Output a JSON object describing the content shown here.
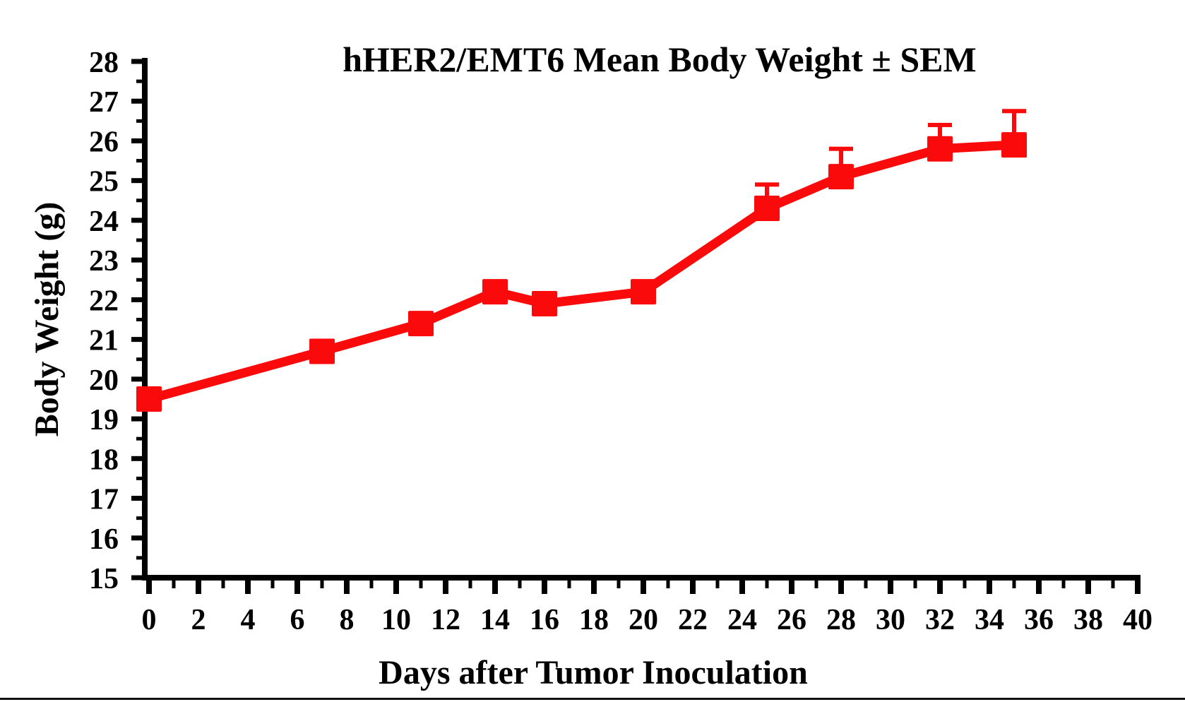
{
  "chart_data": {
    "type": "line",
    "title": "hHER2/EMT6 Mean Body Weight ± SEM",
    "xlabel": "Days after Tumor Inoculation",
    "ylabel": "Body Weight (g)",
    "x": [
      0,
      7,
      11,
      14,
      16,
      20,
      25,
      28,
      32,
      35
    ],
    "series": [
      {
        "name": "hHER2/EMT6 mean body weight",
        "values": [
          19.5,
          20.7,
          21.4,
          22.2,
          21.9,
          22.2,
          24.3,
          25.1,
          25.8,
          25.9
        ],
        "sem_upper": [
          null,
          null,
          null,
          null,
          null,
          null,
          0.6,
          0.7,
          0.6,
          0.85
        ],
        "color": "#fa0a0a",
        "marker": "square"
      }
    ],
    "xlim": [
      0,
      40
    ],
    "ylim": [
      15,
      28
    ],
    "x_tick_major_step": 2,
    "x_tick_minor_step": 1,
    "y_tick_major_step": 1,
    "y_tick_minor_step": 0.5,
    "grid": false,
    "legend_position": "none",
    "error_bar_direction": "upper-only",
    "axis_color": "#000000"
  }
}
